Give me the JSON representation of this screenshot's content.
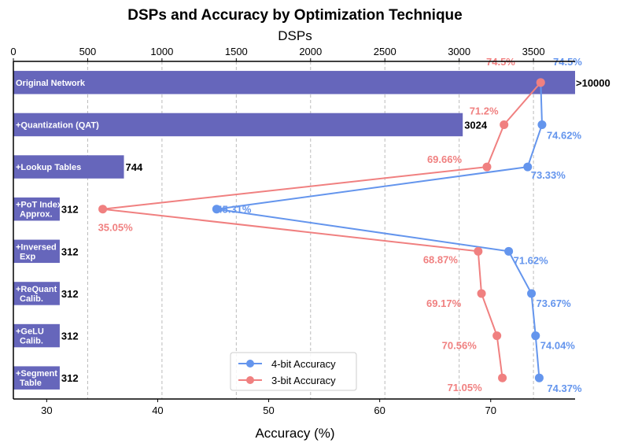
{
  "chart_data": {
    "type": "bar",
    "title": "DSPs and Accuracy by Optimization Technique",
    "top_axis": {
      "label": "DSPs",
      "range": [
        0,
        3780
      ],
      "ticks": [
        0,
        500,
        1000,
        1500,
        2000,
        2500,
        3000,
        3500
      ]
    },
    "bottom_axis": {
      "label": "Accuracy (%)",
      "range": [
        27,
        77.6
      ],
      "ticks": [
        30,
        40,
        50,
        60,
        70
      ]
    },
    "categories": [
      [
        "Original Network"
      ],
      [
        "+Quantization (QAT)"
      ],
      [
        "+Lookup Tables"
      ],
      [
        "+PoT Index",
        "Approx."
      ],
      [
        "+Inversed",
        "Exp"
      ],
      [
        "+ReQuant",
        "Calib."
      ],
      [
        "+GeLU",
        "Calib."
      ],
      [
        "+Segment",
        "Table"
      ]
    ],
    "dsp_values": [
      3780,
      3024,
      744,
      312,
      312,
      312,
      312,
      312
    ],
    "dsp_labels": [
      ">10000",
      "3024",
      "744",
      "312",
      "312",
      "312",
      "312",
      "312"
    ],
    "series": [
      {
        "name": "4-bit Accuracy",
        "color": "#6495ED",
        "values": [
          74.5,
          74.62,
          73.33,
          45.31,
          71.62,
          73.67,
          74.04,
          74.37
        ],
        "labels": [
          "74.5%",
          "74.62%",
          "73.33%",
          "45.31%",
          "71.62%",
          "73.67%",
          "74.04%",
          "74.37%"
        ]
      },
      {
        "name": "3-bit Accuracy",
        "color": "#F08080",
        "values": [
          74.5,
          71.2,
          69.66,
          35.05,
          68.87,
          69.17,
          70.56,
          71.05
        ],
        "labels": [
          "74.5%",
          "71.2%",
          "69.66%",
          "35.05%",
          "68.87%",
          "69.17%",
          "70.56%",
          "71.05%"
        ]
      }
    ],
    "bar_color": "#6666BB",
    "legend_position": "bottom-center",
    "grid": "vertical dashed at DSP ticks"
  }
}
